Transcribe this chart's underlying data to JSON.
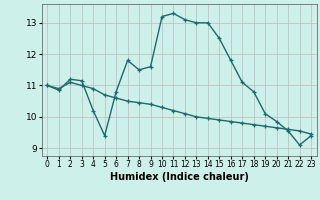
{
  "xlabel": "Humidex (Indice chaleur)",
  "background_color": "#cef0eb",
  "grid_color": "#bbbbbb",
  "line_color": "#1a6b6b",
  "xlim": [
    -0.5,
    23.5
  ],
  "ylim": [
    8.75,
    13.6
  ],
  "yticks": [
    9,
    10,
    11,
    12,
    13
  ],
  "xticks": [
    0,
    1,
    2,
    3,
    4,
    5,
    6,
    7,
    8,
    9,
    10,
    11,
    12,
    13,
    14,
    15,
    16,
    17,
    18,
    19,
    20,
    21,
    22,
    23
  ],
  "line1_x": [
    0,
    1,
    2,
    3,
    4,
    5,
    6,
    7,
    8,
    9,
    10,
    11,
    12,
    13,
    14,
    15,
    16,
    17,
    18,
    19,
    20,
    21,
    22,
    23
  ],
  "line1_y": [
    11.0,
    10.85,
    11.2,
    11.15,
    10.2,
    9.4,
    10.8,
    11.8,
    11.5,
    11.6,
    13.2,
    13.3,
    13.1,
    13.0,
    13.0,
    12.5,
    11.8,
    11.1,
    10.8,
    10.1,
    9.85,
    9.55,
    9.1,
    9.4
  ],
  "line2_x": [
    0,
    1,
    2,
    3,
    4,
    5,
    6,
    7,
    8,
    9,
    10,
    11,
    12,
    13,
    14,
    15,
    16,
    17,
    18,
    19,
    20,
    21,
    22,
    23
  ],
  "line2_y": [
    11.0,
    10.9,
    11.1,
    11.0,
    10.9,
    10.7,
    10.6,
    10.5,
    10.45,
    10.4,
    10.3,
    10.2,
    10.1,
    10.0,
    9.95,
    9.9,
    9.85,
    9.8,
    9.75,
    9.7,
    9.65,
    9.6,
    9.55,
    9.45
  ]
}
